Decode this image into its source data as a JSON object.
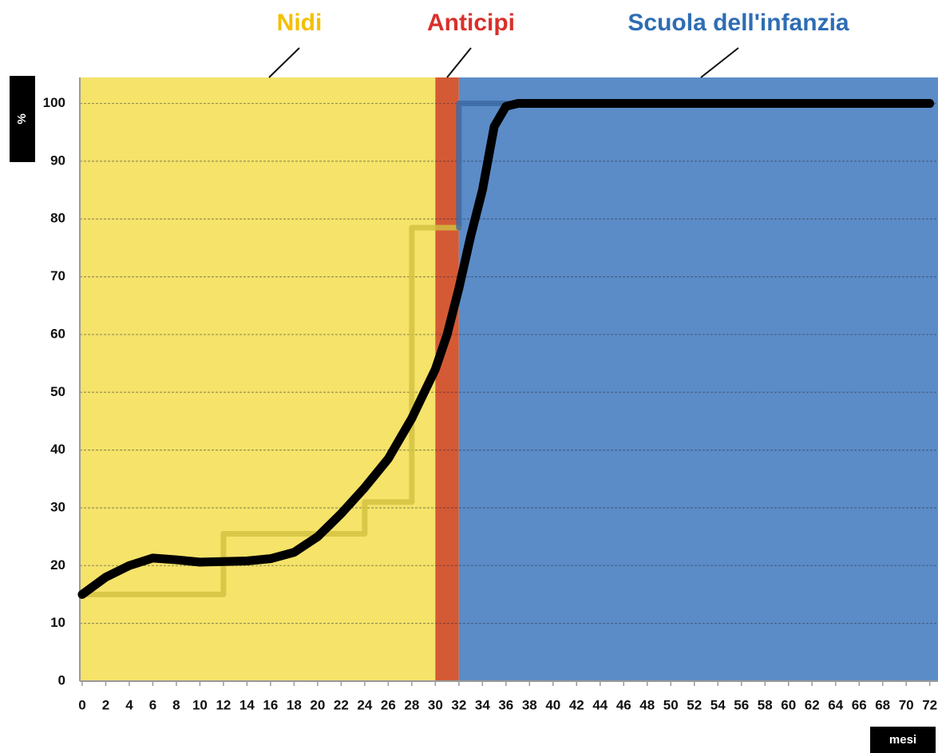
{
  "chart_data": {
    "type": "line",
    "xlabel": "mesi",
    "ylabel": "%",
    "xlim": [
      -0.2,
      72.7
    ],
    "ylim": [
      0,
      104.5
    ],
    "xticks": [
      0,
      2,
      4,
      6,
      8,
      10,
      12,
      14,
      16,
      18,
      20,
      22,
      24,
      26,
      28,
      30,
      32,
      34,
      36,
      38,
      40,
      42,
      44,
      46,
      48,
      50,
      52,
      54,
      56,
      58,
      60,
      62,
      64,
      66,
      68,
      70,
      72
    ],
    "yticks": [
      0,
      10,
      20,
      30,
      40,
      50,
      60,
      70,
      80,
      90,
      100
    ],
    "grid": true,
    "regions": [
      {
        "label": "Nidi",
        "from": -0.2,
        "to": 30,
        "color": "#f5e36a",
        "label_color": "#f4bf00"
      },
      {
        "label": "Anticipi",
        "from": 30,
        "to": 32,
        "color": "#d45a35",
        "label_color": "#d9302b"
      },
      {
        "label": "Scuola dell'infanzia",
        "from": 32,
        "to": 72.7,
        "color": "#5b8cc7",
        "label_color": "#2e6db4"
      }
    ],
    "series": [
      {
        "color": "#d2c040",
        "x": [
          0,
          12,
          12,
          24,
          24,
          28,
          28,
          32
        ],
        "values": [
          15,
          15,
          25.5,
          25.5,
          31,
          31,
          78.5,
          78.5
        ]
      },
      {
        "color": "#3a68a3",
        "x": [
          32,
          32,
          37
        ],
        "values": [
          78.5,
          100,
          100
        ]
      },
      {
        "color": "#000000",
        "x": [
          0,
          2,
          4,
          6,
          8,
          10,
          12,
          14,
          16,
          18,
          20,
          22,
          24,
          26,
          28,
          30,
          31,
          32,
          33,
          34,
          35,
          36,
          37,
          40,
          72
        ],
        "values": [
          15,
          18,
          20,
          21.3,
          21,
          20.6,
          20.7,
          20.8,
          21.2,
          22.3,
          25,
          29,
          33.5,
          38.5,
          45.5,
          54,
          60,
          68,
          77,
          85,
          96,
          99.5,
          100,
          100,
          100
        ]
      }
    ]
  }
}
